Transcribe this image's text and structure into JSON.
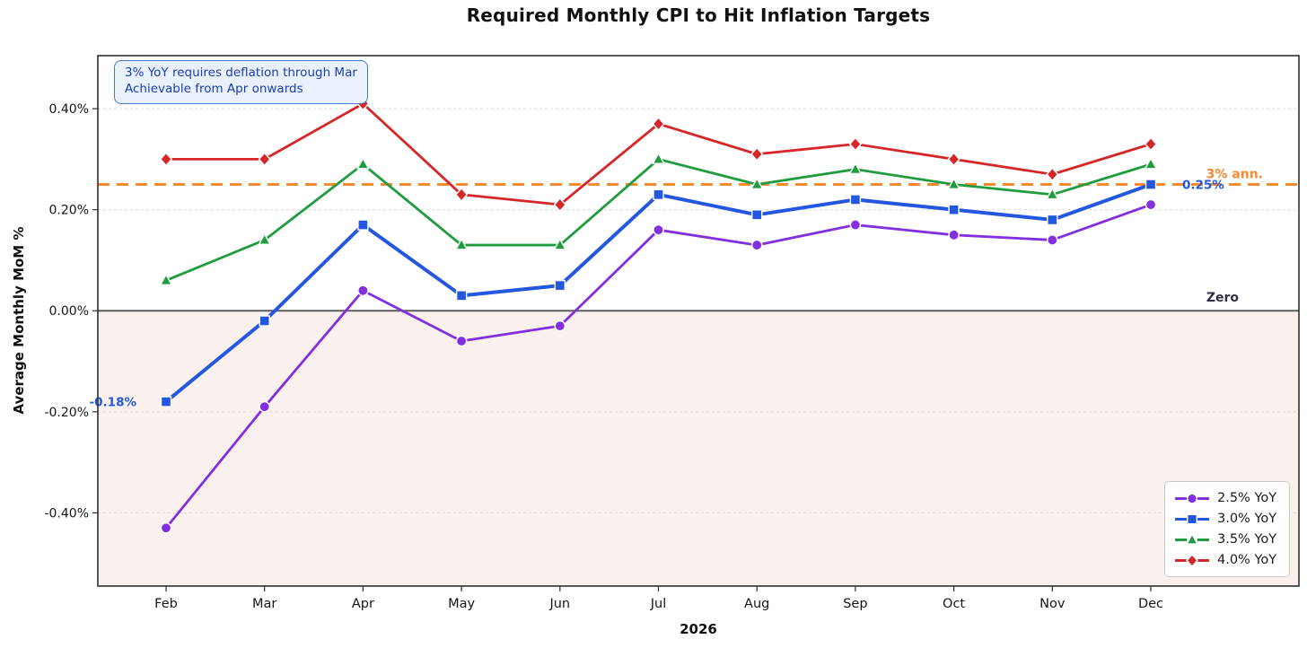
{
  "title": "Required Monthly CPI to Hit Inflation Targets",
  "annotation_box": {
    "line1": "3% YoY requires deflation through Mar",
    "line2": "Achievable from Apr onwards"
  },
  "axes": {
    "y_label": "Average Monthly MoM %",
    "x_label": "2026",
    "y_tick_labels": [
      "0.40%",
      "0.20%",
      "0.00%",
      "-0.20%",
      "-0.40%"
    ],
    "y_tick_values": [
      0.4,
      0.2,
      0,
      -0.2,
      -0.4
    ],
    "x_tick_labels": [
      "Feb",
      "Mar",
      "Apr",
      "May",
      "Jun",
      "Jul",
      "Aug",
      "Sep",
      "Oct",
      "Nov",
      "Dec"
    ]
  },
  "chart_data": {
    "type": "line",
    "x": [
      "Feb",
      "Mar",
      "Apr",
      "May",
      "Jun",
      "Jul",
      "Aug",
      "Sep",
      "Oct",
      "Nov",
      "Dec"
    ],
    "xlabel": "2026",
    "ylabel": "Average Monthly MoM %",
    "ylim": [
      -0.545,
      0.505
    ],
    "grid": true,
    "legend_position": "lower right",
    "series": [
      {
        "name": "2.5% YoY",
        "marker": "circle",
        "color": "#8230df",
        "line_width": 2.8,
        "values": [
          -0.43,
          -0.19,
          0.04,
          -0.06,
          -0.03,
          0.16,
          0.13,
          0.17,
          0.15,
          0.14,
          0.21
        ]
      },
      {
        "name": "3.0% YoY",
        "marker": "square",
        "color": "#2457e0",
        "line_width": 4,
        "values": [
          -0.18,
          -0.02,
          0.17,
          0.03,
          0.05,
          0.23,
          0.19,
          0.22,
          0.2,
          0.18,
          0.25
        ]
      },
      {
        "name": "3.5% YoY",
        "marker": "triangle",
        "color": "#1f9c3e",
        "line_width": 2.8,
        "values": [
          0.06,
          0.14,
          0.29,
          0.13,
          0.13,
          0.3,
          0.25,
          0.28,
          0.25,
          0.23,
          0.29
        ]
      },
      {
        "name": "4.0% YoY",
        "marker": "diamond",
        "color": "#d62728",
        "line_width": 2.8,
        "values": [
          0.3,
          0.3,
          0.41,
          0.23,
          0.21,
          0.37,
          0.31,
          0.33,
          0.3,
          0.27,
          0.33
        ]
      }
    ],
    "reference_lines": [
      {
        "id": "target",
        "label": "3% ann.",
        "value": 0.25,
        "color": "#f8892f",
        "style": "dashed",
        "label_color": "#f8892f"
      },
      {
        "id": "zero",
        "label": "Zero",
        "value": 0,
        "color": "#5c5c5c",
        "style": "solid",
        "label_color": "#2f3146"
      }
    ],
    "point_labels": [
      {
        "id": "first-blue",
        "text": "-0.18%",
        "color": "#2457e0",
        "series": "3.0% YoY",
        "month": "Feb",
        "value": -0.18
      },
      {
        "id": "last-blue",
        "text": "0.25%",
        "color": "#2457e0",
        "series": "3.0% YoY",
        "month": "Dec",
        "value": 0.25
      }
    ],
    "negative_region_color": "#faf1ef",
    "gridline_color": "#d9d9d9",
    "spine_color": "#2e2e2e"
  },
  "legend": {
    "items": [
      "2.5% YoY",
      "3.0% YoY",
      "3.5% YoY",
      "4.0% YoY"
    ]
  }
}
